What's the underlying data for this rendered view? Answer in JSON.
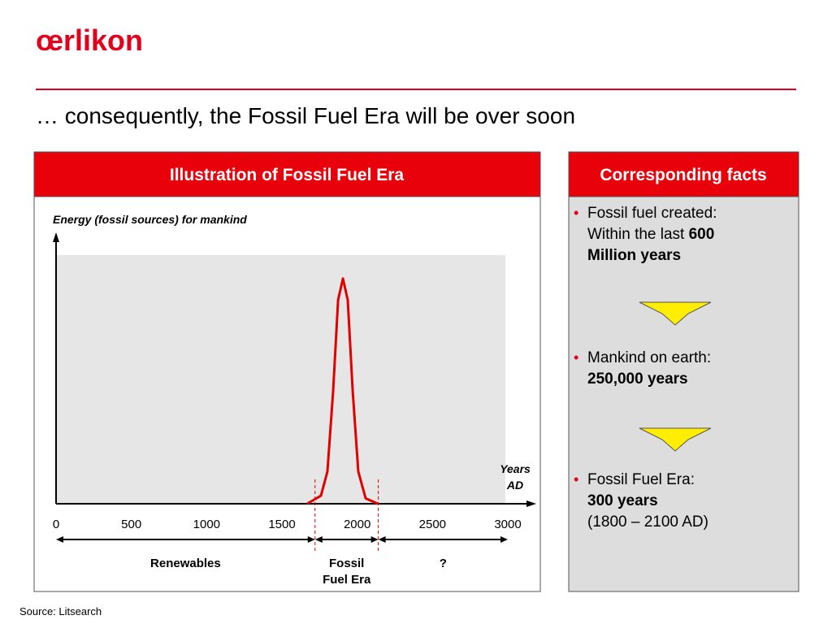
{
  "header": {
    "logo": "œrlikon",
    "title": "… consequently, the Fossil Fuel Era will be over soon"
  },
  "panel": {
    "title": "Illustration of Fossil Fuel Era"
  },
  "chart_data": {
    "type": "line",
    "y_label": "Energy (fossil sources) for mankind",
    "x_label": [
      "Years",
      "AD"
    ],
    "xlim": [
      0,
      3000
    ],
    "ylim": [
      0,
      100
    ],
    "xticks": [
      0,
      500,
      1000,
      1500,
      2000,
      2500,
      3000
    ],
    "series": [
      {
        "color": "#e00000",
        "x": [
          1668,
          1759,
          1802,
          1840,
          1873,
          1905,
          1937,
          1970,
          2007,
          2056,
          2137
        ],
        "values": [
          0,
          3,
          12,
          42,
          76,
          84,
          76,
          42,
          12,
          2,
          0
        ]
      }
    ],
    "era_bounds": [
      1720,
      2140
    ],
    "spans": [
      {
        "from": 0,
        "to": 1720,
        "label": [
          "Renewables"
        ]
      },
      {
        "from": 1720,
        "to": 2140,
        "label": [
          "Fossil",
          "Fuel Era"
        ]
      },
      {
        "from": 2140,
        "to": 3000,
        "label": [
          "?"
        ]
      }
    ]
  },
  "facts": {
    "title": "Corresponding facts",
    "items": [
      {
        "lines": [
          [
            {
              "text": "Fossil fuel created:",
              "bold": false
            }
          ],
          [
            {
              "text": "Within the last ",
              "bold": false
            },
            {
              "text": "600",
              "bold": true
            }
          ],
          [
            {
              "text": "Million years",
              "bold": true
            }
          ]
        ]
      },
      {
        "lines": [
          [
            {
              "text": "Mankind on earth:",
              "bold": false
            }
          ],
          [
            {
              "text": "250,000 years",
              "bold": true
            }
          ]
        ]
      },
      {
        "lines": [
          [
            {
              "text": "Fossil Fuel Era:",
              "bold": false
            }
          ],
          [
            {
              "text": "300 years",
              "bold": true
            }
          ],
          [
            {
              "text": "(1800 – 2100 AD)",
              "bold": false
            }
          ]
        ]
      }
    ]
  },
  "source": "Source: Litsearch"
}
